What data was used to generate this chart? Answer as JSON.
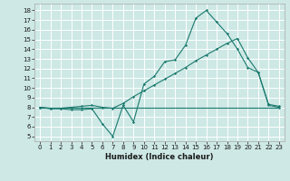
{
  "xlabel": "Humidex (Indice chaleur)",
  "bg_color": "#cde8e5",
  "grid_color": "#ffffff",
  "line_color": "#1a7a6e",
  "xlim": [
    -0.5,
    23.5
  ],
  "ylim": [
    4.5,
    18.7
  ],
  "xticks": [
    0,
    1,
    2,
    3,
    4,
    5,
    6,
    7,
    8,
    9,
    10,
    11,
    12,
    13,
    14,
    15,
    16,
    17,
    18,
    19,
    20,
    21,
    22,
    23
  ],
  "yticks": [
    5,
    6,
    7,
    8,
    9,
    10,
    11,
    12,
    13,
    14,
    15,
    16,
    17,
    18
  ],
  "line1_x": [
    0,
    1,
    2,
    3,
    4,
    5,
    6,
    7,
    8,
    9,
    10,
    11,
    12,
    13,
    14,
    15,
    16,
    17,
    18,
    19,
    20,
    21,
    22,
    23
  ],
  "line1_y": [
    8.0,
    7.85,
    7.85,
    7.75,
    7.75,
    7.85,
    6.3,
    5.0,
    8.2,
    6.5,
    10.4,
    11.2,
    12.7,
    12.9,
    14.4,
    17.2,
    18.0,
    16.8,
    15.6,
    14.0,
    12.1,
    11.6,
    8.2,
    8.0
  ],
  "line2_x": [
    0,
    1,
    2,
    3,
    4,
    5,
    6,
    7,
    8,
    9,
    10,
    11,
    12,
    13,
    14,
    15,
    16,
    17,
    18,
    19,
    20,
    21,
    22,
    23
  ],
  "line2_y": [
    8.0,
    7.9,
    7.9,
    8.0,
    8.1,
    8.2,
    8.0,
    7.9,
    8.4,
    9.1,
    9.7,
    10.3,
    10.9,
    11.5,
    12.1,
    12.8,
    13.4,
    14.0,
    14.6,
    15.1,
    13.1,
    11.6,
    8.3,
    8.1
  ],
  "line3_x": [
    0,
    23
  ],
  "line3_y": [
    8.0,
    8.0
  ]
}
